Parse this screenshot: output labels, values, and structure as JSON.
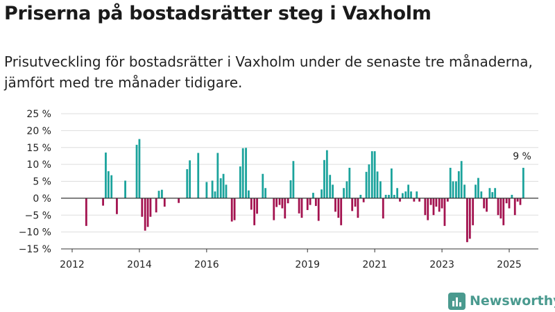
{
  "header": {
    "title": "Priserna på bostadsrätter steg i Vaxholm",
    "subtitle": "Prisutveckling för bostadsrätter i Vaxholm under de senaste tre månaderna, jämfört med tre månader tidigare."
  },
  "branding": {
    "name": "Newsworthy",
    "icon": "bar-chart-logo-icon",
    "color": "#4a9a8f"
  },
  "colors": {
    "positive": "#1ba39c",
    "negative": "#a3124f",
    "grid": "#dddddd",
    "zero_line": "#333333"
  },
  "chart_data": {
    "type": "bar",
    "unit": "%",
    "ylim": [
      -15,
      25
    ],
    "y_ticks": [
      -15,
      -10,
      -5,
      0,
      5,
      10,
      15,
      20,
      25
    ],
    "y_tick_labels": [
      "−15 %",
      "−10 %",
      "−5 %",
      "0 %",
      "5 %",
      "10 %",
      "15 %",
      "20 %",
      "25 %"
    ],
    "x_ticks": [
      2012,
      2014,
      2016,
      2019,
      2021,
      2023,
      2025
    ],
    "x_tick_labels": [
      "2012",
      "2014",
      "2016",
      "2019",
      "2021",
      "2023",
      "2025"
    ],
    "grid": true,
    "annotation": {
      "text": "9 %",
      "year": 2025.3,
      "value": 9
    },
    "bars": [
      [
        2012.42,
        -8.2
      ],
      [
        2012.92,
        -2.2
      ],
      [
        2013.0,
        13.5
      ],
      [
        2013.08,
        8
      ],
      [
        2013.17,
        6.8
      ],
      [
        2013.33,
        -4.7
      ],
      [
        2013.58,
        5.2
      ],
      [
        2013.92,
        15.8
      ],
      [
        2014.0,
        17.5
      ],
      [
        2014.08,
        -5.5
      ],
      [
        2014.17,
        -9.6
      ],
      [
        2014.25,
        -8.5
      ],
      [
        2014.33,
        -5.5
      ],
      [
        2014.5,
        -4.2
      ],
      [
        2014.58,
        2.2
      ],
      [
        2014.67,
        2.5
      ],
      [
        2014.75,
        -2.5
      ],
      [
        2015.17,
        -1.4
      ],
      [
        2015.42,
        8.6
      ],
      [
        2015.5,
        11.2
      ],
      [
        2015.75,
        13.4
      ],
      [
        2016.0,
        4.8
      ],
      [
        2016.17,
        5.2
      ],
      [
        2016.25,
        2
      ],
      [
        2016.33,
        13.4
      ],
      [
        2016.42,
        5.9
      ],
      [
        2016.5,
        7.2
      ],
      [
        2016.58,
        4
      ],
      [
        2016.75,
        -6.9
      ],
      [
        2016.83,
        -6.5
      ],
      [
        2017.0,
        9.4
      ],
      [
        2017.08,
        14.8
      ],
      [
        2017.17,
        14.9
      ],
      [
        2017.25,
        2.3
      ],
      [
        2017.33,
        -3.4
      ],
      [
        2017.42,
        -8
      ],
      [
        2017.5,
        -4.6
      ],
      [
        2017.67,
        7.2
      ],
      [
        2017.75,
        3
      ],
      [
        2018.0,
        -6.5
      ],
      [
        2018.08,
        -2.6
      ],
      [
        2018.17,
        -2
      ],
      [
        2018.25,
        -3
      ],
      [
        2018.33,
        -6
      ],
      [
        2018.42,
        -1.5
      ],
      [
        2018.5,
        5.3
      ],
      [
        2018.58,
        11
      ],
      [
        2018.75,
        -4.5
      ],
      [
        2018.83,
        -5.8
      ],
      [
        2019.0,
        -3.5
      ],
      [
        2019.08,
        -2
      ],
      [
        2019.17,
        1.6
      ],
      [
        2019.25,
        -2.3
      ],
      [
        2019.33,
        -6.7
      ],
      [
        2019.42,
        2.6
      ],
      [
        2019.5,
        11.3
      ],
      [
        2019.58,
        14.2
      ],
      [
        2019.67,
        6.9
      ],
      [
        2019.75,
        4
      ],
      [
        2019.83,
        -4
      ],
      [
        2019.92,
        -5.8
      ],
      [
        2020.0,
        -8
      ],
      [
        2020.08,
        3
      ],
      [
        2020.17,
        5
      ],
      [
        2020.25,
        9
      ],
      [
        2020.33,
        -3.8
      ],
      [
        2020.42,
        -2.5
      ],
      [
        2020.5,
        -5.8
      ],
      [
        2020.58,
        1
      ],
      [
        2020.67,
        -1.2
      ],
      [
        2020.75,
        7.8
      ],
      [
        2020.83,
        10
      ],
      [
        2020.92,
        13.9
      ],
      [
        2021.0,
        13.9
      ],
      [
        2021.08,
        7.9
      ],
      [
        2021.17,
        5
      ],
      [
        2021.25,
        -6
      ],
      [
        2021.33,
        1
      ],
      [
        2021.42,
        1
      ],
      [
        2021.5,
        8.8
      ],
      [
        2021.58,
        1
      ],
      [
        2021.67,
        3
      ],
      [
        2021.75,
        -1
      ],
      [
        2021.83,
        1.5
      ],
      [
        2021.92,
        2
      ],
      [
        2022.0,
        4
      ],
      [
        2022.08,
        2
      ],
      [
        2022.17,
        -1
      ],
      [
        2022.25,
        2
      ],
      [
        2022.33,
        -1
      ],
      [
        2022.5,
        -5
      ],
      [
        2022.58,
        -6.5
      ],
      [
        2022.67,
        -2
      ],
      [
        2022.75,
        -5
      ],
      [
        2022.83,
        -2.5
      ],
      [
        2022.92,
        -4
      ],
      [
        2023.0,
        -3
      ],
      [
        2023.08,
        -8.2
      ],
      [
        2023.17,
        -1
      ],
      [
        2023.25,
        9
      ],
      [
        2023.33,
        5
      ],
      [
        2023.42,
        5
      ],
      [
        2023.5,
        8
      ],
      [
        2023.58,
        11
      ],
      [
        2023.67,
        4
      ],
      [
        2023.75,
        -13
      ],
      [
        2023.83,
        -12
      ],
      [
        2023.92,
        -8
      ],
      [
        2024.0,
        4
      ],
      [
        2024.08,
        6
      ],
      [
        2024.17,
        2
      ],
      [
        2024.25,
        -3
      ],
      [
        2024.33,
        -4
      ],
      [
        2024.42,
        3
      ],
      [
        2024.5,
        1.8
      ],
      [
        2024.58,
        3
      ],
      [
        2024.67,
        -5
      ],
      [
        2024.75,
        -6
      ],
      [
        2024.83,
        -8
      ],
      [
        2024.92,
        -1.5
      ],
      [
        2025.0,
        -3
      ],
      [
        2025.08,
        1
      ],
      [
        2025.17,
        -5
      ],
      [
        2025.25,
        -1
      ],
      [
        2025.33,
        -2
      ],
      [
        2025.42,
        9
      ]
    ]
  }
}
